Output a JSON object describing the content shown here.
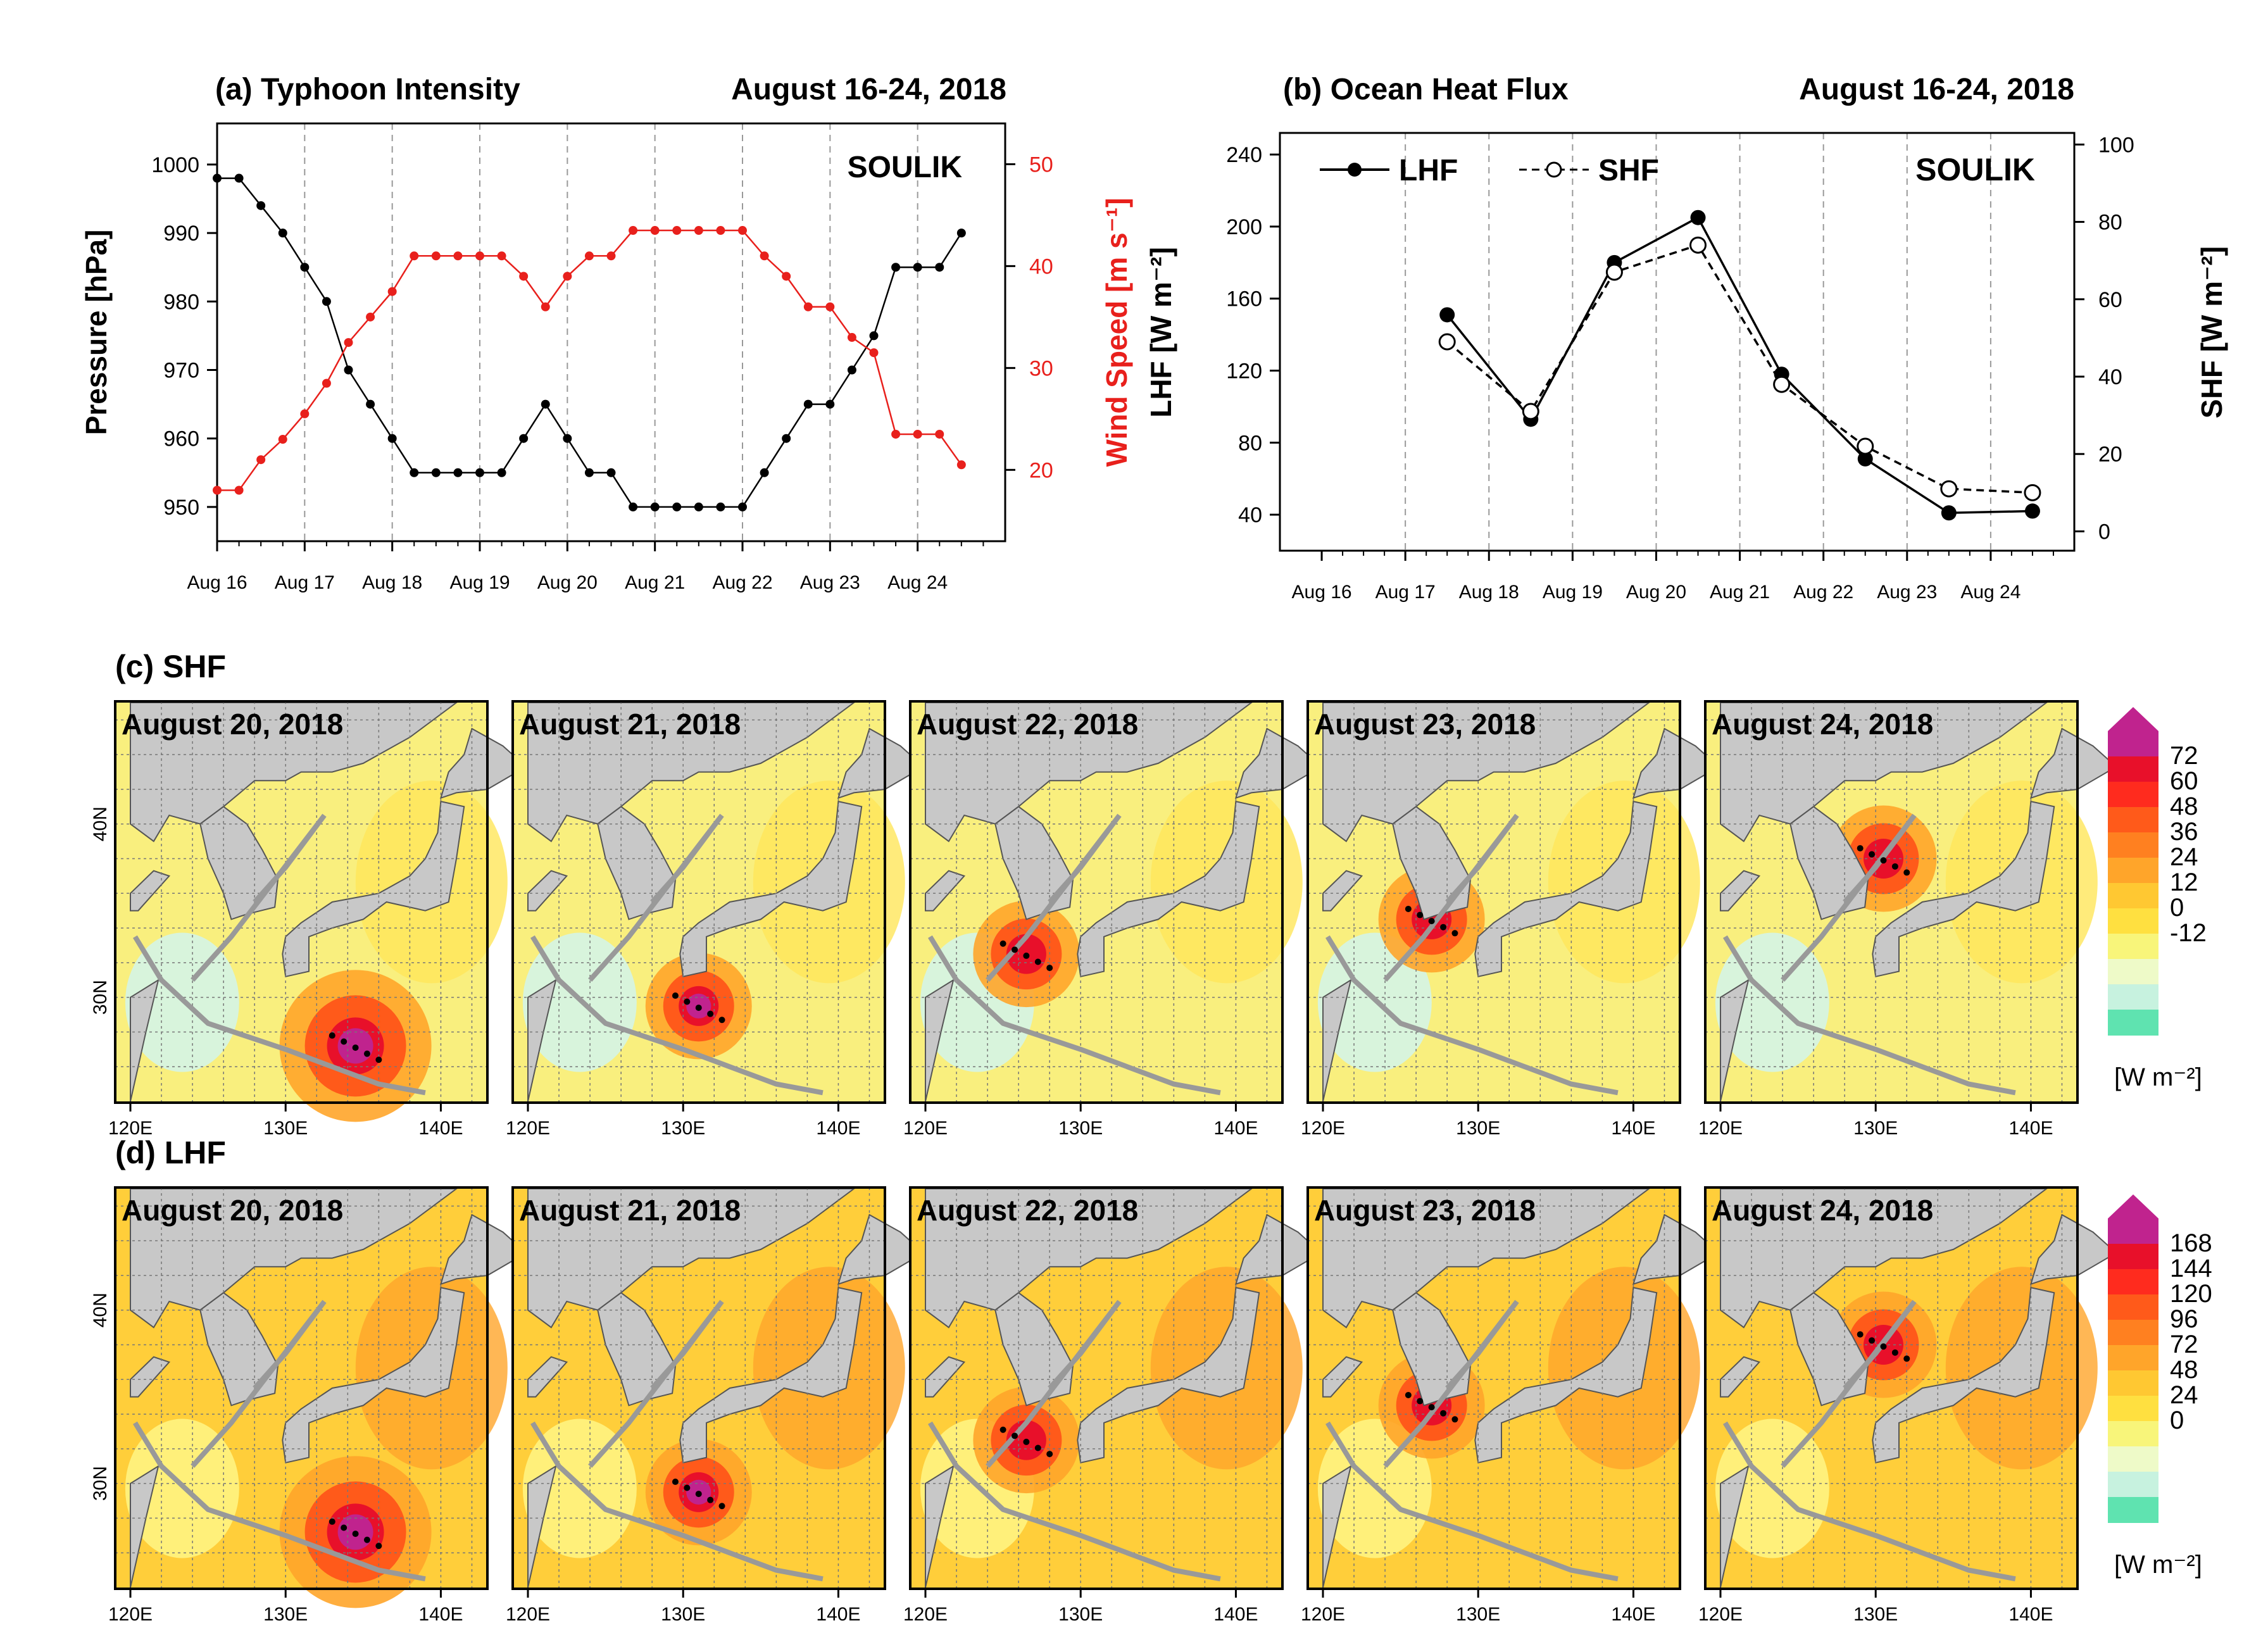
{
  "chart_data": [
    {
      "panel": "a",
      "type": "line",
      "title": "(a) Typhoon Intensity",
      "subtitle": "August 16-24, 2018",
      "annotation": "SOULIK",
      "xlabel": "",
      "ylabel": "Pressure [hPa]",
      "ylabel_right": "Wind Speed [m s⁻¹]",
      "ylim": [
        945,
        1006
      ],
      "ylim_right": [
        13,
        54
      ],
      "yticks": [
        950,
        960,
        970,
        980,
        990,
        1000
      ],
      "yticks_right": [
        20,
        30,
        40,
        50
      ],
      "xlim": [
        0,
        9
      ],
      "x_ticks": [
        0,
        1,
        2,
        3,
        4,
        5,
        6,
        7,
        8
      ],
      "x_tick_labels": [
        "Aug 16",
        "Aug 17",
        "Aug 18",
        "Aug 19",
        "Aug 20",
        "Aug 21",
        "Aug 22",
        "Aug 23",
        "Aug 24"
      ],
      "grid": "vertical dashed",
      "series": [
        {
          "name": "Pressure",
          "axis": "left",
          "color": "#000000",
          "x": [
            0,
            0.25,
            0.5,
            0.75,
            1,
            1.25,
            1.5,
            1.75,
            2,
            2.25,
            2.5,
            2.75,
            3,
            3.25,
            3.5,
            3.75,
            4,
            4.25,
            4.5,
            4.75,
            5,
            5.25,
            5.5,
            5.75,
            6,
            6.25,
            6.5,
            6.75,
            7,
            7.25,
            7.5,
            7.75,
            8,
            8.25,
            8.5
          ],
          "values": [
            998,
            998,
            994,
            990,
            985,
            980,
            970,
            965,
            960,
            955,
            955,
            955,
            955,
            955,
            960,
            965,
            960,
            955,
            955,
            950,
            950,
            950,
            950,
            950,
            950,
            955,
            960,
            965,
            965,
            970,
            975,
            985,
            985,
            985,
            990
          ]
        },
        {
          "name": "Wind Speed",
          "axis": "right",
          "color": "#e8201c",
          "x": [
            0,
            0.25,
            0.5,
            0.75,
            1,
            1.25,
            1.5,
            1.75,
            2,
            2.25,
            2.5,
            2.75,
            3,
            3.25,
            3.5,
            3.75,
            4,
            4.25,
            4.5,
            4.75,
            5,
            5.25,
            5.5,
            5.75,
            6,
            6.25,
            6.5,
            6.75,
            7,
            7.25,
            7.5,
            7.75,
            8,
            8.25,
            8.5
          ],
          "values": [
            18,
            18,
            21,
            23,
            25.5,
            28.5,
            32.5,
            35,
            37.5,
            41,
            41,
            41,
            41,
            41,
            39,
            36,
            39,
            41,
            41,
            43.5,
            43.5,
            43.5,
            43.5,
            43.5,
            43.5,
            41,
            39,
            36,
            36,
            33,
            31.5,
            23.5,
            23.5,
            23.5,
            20.5
          ]
        }
      ]
    },
    {
      "panel": "b",
      "type": "line",
      "title": "(b) Ocean Heat Flux",
      "subtitle": "August 16-24, 2018",
      "annotation": "SOULIK",
      "ylabel": "LHF [W m⁻²]",
      "ylabel_right": "SHF [W m⁻²]",
      "ylim": [
        20,
        252
      ],
      "ylim_right": [
        -5,
        103
      ],
      "yticks": [
        40,
        80,
        120,
        160,
        200,
        240
      ],
      "yticks_right": [
        0,
        20,
        40,
        60,
        80,
        100
      ],
      "xlim": [
        -0.5,
        9
      ],
      "x_ticks": [
        0,
        1,
        2,
        3,
        4,
        5,
        6,
        7,
        8
      ],
      "x_tick_labels": [
        "Aug 16",
        "Aug 17",
        "Aug 18",
        "Aug 19",
        "Aug 20",
        "Aug 21",
        "Aug 22",
        "Aug 23",
        "Aug 24"
      ],
      "legend": [
        "LHF",
        "SHF"
      ],
      "grid": "vertical dashed",
      "series": [
        {
          "name": "LHF",
          "axis": "left",
          "marker": "filled-circle",
          "x": [
            1.5,
            2.5,
            3.5,
            4.5,
            5.5,
            6.5,
            7.5,
            8.5
          ],
          "values": [
            151,
            93,
            180,
            205,
            118,
            71,
            41,
            42
          ]
        },
        {
          "name": "SHF",
          "axis": "right",
          "marker": "open-circle",
          "x": [
            1.5,
            2.5,
            3.5,
            4.5,
            5.5,
            6.5,
            7.5,
            8.5
          ],
          "values": [
            49,
            31,
            67,
            74,
            38,
            22,
            11,
            10
          ]
        }
      ]
    },
    {
      "panel": "c",
      "type": "heatmap",
      "title": "(c) SHF",
      "map_titles": [
        "August 20, 2018",
        "August 21, 2018",
        "August 22, 2018",
        "August 23, 2018",
        "August 24, 2018"
      ],
      "lon_ticks": [
        "120E",
        "130E",
        "140E"
      ],
      "lat_ticks": [
        "40N",
        "30N"
      ],
      "colorbar_ticks": [
        "72",
        "60",
        "48",
        "36",
        "24",
        "12",
        "0",
        "-12"
      ],
      "colorbar_unit": "[W m⁻²]",
      "colorbar_colors": [
        "#c0238e",
        "#e8102a",
        "#ff2b1e",
        "#ff5a1a",
        "#ff8020",
        "#ffa52a",
        "#ffc832",
        "#ffe040",
        "#f8f57a",
        "#eefac8",
        "#c7f2df",
        "#5fe3b0"
      ]
    },
    {
      "panel": "d",
      "type": "heatmap",
      "title": "(d) LHF",
      "map_titles": [
        "August 20, 2018",
        "August 21, 2018",
        "August 22, 2018",
        "August 23, 2018",
        "August 24, 2018"
      ],
      "lon_ticks": [
        "120E",
        "130E",
        "140E"
      ],
      "lat_ticks": [
        "40N",
        "30N"
      ],
      "colorbar_ticks": [
        "168",
        "144",
        "120",
        "96",
        "72",
        "48",
        "24",
        "0"
      ],
      "colorbar_unit": "[W m⁻²]",
      "colorbar_colors": [
        "#c0238e",
        "#e8102a",
        "#ff2b1e",
        "#ff5a1a",
        "#ff8020",
        "#ffa52a",
        "#ffc832",
        "#ffe040",
        "#f8f57a",
        "#eefac8",
        "#c7f2df",
        "#5fe3b0"
      ]
    }
  ]
}
